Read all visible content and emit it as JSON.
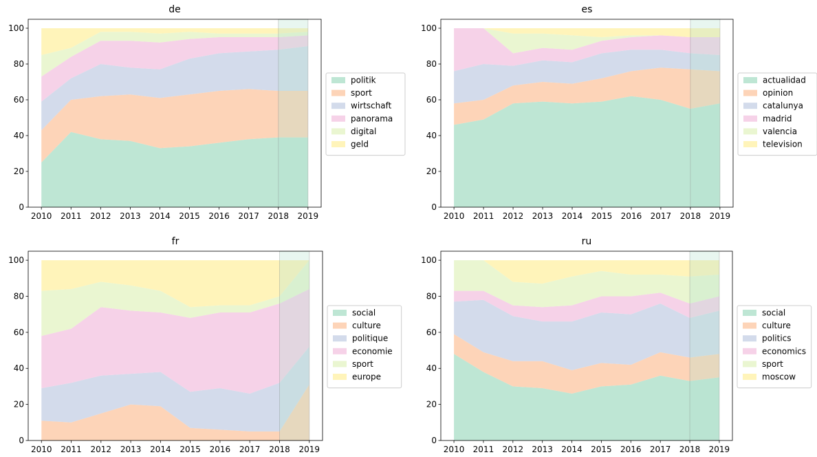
{
  "palette": [
    "#b3e2cd",
    "#fdcdac",
    "#cbd5e8",
    "#f4cae4",
    "#e6f5c9",
    "#fff2ae"
  ],
  "highlight_color": "#b3e2cd",
  "chart_data": [
    {
      "type": "area",
      "title": "de",
      "x": [
        "2010",
        "2011",
        "2012",
        "2013",
        "2014",
        "2015",
        "2016",
        "2017",
        "2018",
        "2019"
      ],
      "ylim": [
        0,
        105
      ],
      "yticks": [
        "0",
        "20",
        "40",
        "60",
        "80",
        "100"
      ],
      "stacked": true,
      "highlight_range": [
        "2018",
        "2019"
      ],
      "legend_position": "right",
      "series": [
        {
          "name": "politik",
          "values": [
            25,
            42,
            38,
            37,
            33,
            34,
            36,
            38,
            39,
            39
          ]
        },
        {
          "name": "sport",
          "values": [
            18,
            18,
            24,
            26,
            28,
            29,
            29,
            28,
            26,
            26
          ]
        },
        {
          "name": "wirtschaft",
          "values": [
            16,
            12,
            18,
            15,
            16,
            20,
            21,
            21,
            23,
            25
          ]
        },
        {
          "name": "panorama",
          "values": [
            14,
            12,
            13,
            15,
            15,
            11,
            9,
            8,
            7,
            6
          ]
        },
        {
          "name": "digital",
          "values": [
            12,
            5,
            5,
            5,
            5,
            4,
            2,
            2,
            2,
            2
          ]
        },
        {
          "name": "geld",
          "values": [
            15,
            11,
            2,
            2,
            3,
            2,
            3,
            3,
            3,
            2
          ]
        }
      ]
    },
    {
      "type": "area",
      "title": "es",
      "x": [
        "2010",
        "2011",
        "2012",
        "2013",
        "2014",
        "2015",
        "2016",
        "2017",
        "2018",
        "2019"
      ],
      "ylim": [
        0,
        105
      ],
      "yticks": [
        "0",
        "20",
        "40",
        "60",
        "80",
        "100"
      ],
      "stacked": true,
      "highlight_range": [
        "2018",
        "2019"
      ],
      "legend_position": "right",
      "series": [
        {
          "name": "actualidad",
          "values": [
            46,
            49,
            58,
            59,
            58,
            59,
            62,
            60,
            55,
            58
          ]
        },
        {
          "name": "opinion",
          "values": [
            12,
            11,
            10,
            11,
            11,
            13,
            14,
            18,
            22,
            18
          ]
        },
        {
          "name": "catalunya",
          "values": [
            18,
            20,
            11,
            12,
            12,
            14,
            12,
            10,
            9,
            9
          ]
        },
        {
          "name": "madrid",
          "values": [
            24,
            20,
            7,
            7,
            7,
            7,
            7,
            8,
            9,
            10
          ]
        },
        {
          "name": "valencia",
          "values": [
            0,
            0,
            11,
            8,
            8,
            2,
            1,
            0,
            0,
            0
          ]
        },
        {
          "name": "television",
          "values": [
            0,
            0,
            3,
            3,
            4,
            5,
            4,
            4,
            5,
            5
          ]
        }
      ]
    },
    {
      "type": "area",
      "title": "fr",
      "x": [
        "2010",
        "2011",
        "2012",
        "2013",
        "2014",
        "2015",
        "2016",
        "2017",
        "2018",
        "2019"
      ],
      "ylim": [
        0,
        105
      ],
      "yticks": [
        "0",
        "20",
        "40",
        "60",
        "80",
        "100"
      ],
      "stacked": true,
      "highlight_range": [
        "2018",
        "2019"
      ],
      "legend_position": "right",
      "series": [
        {
          "name": "social",
          "values": [
            0,
            0,
            0,
            0,
            0,
            0,
            0,
            0,
            0,
            0
          ]
        },
        {
          "name": "culture",
          "values": [
            11,
            10,
            15,
            20,
            19,
            7,
            6,
            5,
            5,
            31
          ]
        },
        {
          "name": "politique",
          "values": [
            18,
            22,
            21,
            17,
            19,
            20,
            23,
            21,
            27,
            21
          ]
        },
        {
          "name": "economie",
          "values": [
            29,
            30,
            38,
            35,
            33,
            41,
            42,
            45,
            44,
            32
          ]
        },
        {
          "name": "sport",
          "values": [
            25,
            22,
            14,
            14,
            12,
            6,
            4,
            4,
            4,
            16
          ]
        },
        {
          "name": "europe",
          "values": [
            17,
            16,
            12,
            14,
            17,
            26,
            25,
            25,
            20,
            0
          ]
        }
      ]
    },
    {
      "type": "area",
      "title": "ru",
      "x": [
        "2010",
        "2011",
        "2012",
        "2013",
        "2014",
        "2015",
        "2016",
        "2017",
        "2018",
        "2019"
      ],
      "ylim": [
        0,
        105
      ],
      "yticks": [
        "0",
        "20",
        "40",
        "60",
        "80",
        "100"
      ],
      "stacked": true,
      "highlight_range": [
        "2018",
        "2019"
      ],
      "legend_position": "right",
      "series": [
        {
          "name": "social",
          "values": [
            48,
            38,
            30,
            29,
            26,
            30,
            31,
            36,
            33,
            35
          ]
        },
        {
          "name": "culture",
          "values": [
            11,
            11,
            14,
            15,
            13,
            13,
            11,
            13,
            13,
            13
          ]
        },
        {
          "name": "politics",
          "values": [
            18,
            29,
            25,
            22,
            27,
            28,
            28,
            27,
            22,
            24
          ]
        },
        {
          "name": "economics",
          "values": [
            6,
            5,
            6,
            8,
            9,
            9,
            10,
            6,
            8,
            8
          ]
        },
        {
          "name": "sport",
          "values": [
            17,
            17,
            13,
            13,
            16,
            14,
            12,
            10,
            15,
            12
          ]
        },
        {
          "name": "moscow",
          "values": [
            0,
            0,
            12,
            13,
            9,
            6,
            8,
            8,
            9,
            8
          ]
        }
      ]
    }
  ]
}
